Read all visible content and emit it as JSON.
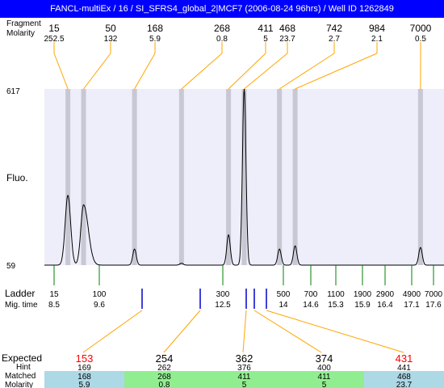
{
  "title": "FANCL-multiEx / 16 / SI_SFRS4_global_2|MCF7 (2006-08-24 96hrs) / Well ID 1262849",
  "header": {
    "fragment_label": "Fragment",
    "molarity_label": "Molarity",
    "fragments": [
      "15",
      "50",
      "168",
      "268",
      "411",
      "468",
      "742",
      "984",
      "7000"
    ],
    "molarities": [
      "252.5",
      "132",
      "5.9",
      "0.8",
      "5",
      "23.7",
      "2.7",
      "2.1",
      "0.5"
    ]
  },
  "axis": {
    "ylabel": "Fluo.",
    "ymax_label": "617",
    "ymin_label": "59"
  },
  "ladder": {
    "label": "Ladder",
    "migtime_label": "Mig. time",
    "sizes": [
      "15",
      "100",
      "300",
      "500",
      "700",
      "1100",
      "1900",
      "2900",
      "4900",
      "7000"
    ],
    "mig_times": [
      "8.5",
      "9.6",
      "12.5",
      "14",
      "14.6",
      "15.3",
      "15.9",
      "16.4",
      "17.1",
      "17.6"
    ]
  },
  "expected": {
    "expected_label": "Expected",
    "hint_label": "Hint",
    "matched_label": "Matched",
    "molarity_label": "Molarity",
    "values": [
      "153",
      "254",
      "362",
      "374",
      "431"
    ],
    "hints": [
      "169",
      "262",
      "376",
      "400",
      "441"
    ],
    "matched": [
      "168",
      "268",
      "411",
      "411",
      "468"
    ],
    "molarities": [
      "5.9",
      "0.8",
      "5",
      "5",
      "23.7"
    ],
    "value_colors": [
      "#ff0000",
      "#000000",
      "#000000",
      "#000000",
      "#ff0000"
    ],
    "cell_colors": [
      "#add8e6",
      "#90ee90",
      "#90ee90",
      "#90ee90",
      "#add8e6"
    ]
  },
  "colors": {
    "title_bg": "#0000ff",
    "plot_bg": "#eeeefa",
    "band": "#c8c8d4",
    "connector": "#ffa500",
    "ladder_tick": "#008000",
    "expected_tick": "#0000cc",
    "trace": "#000000"
  },
  "chart_data": {
    "type": "line",
    "title": "FANCL-multiEx / 16 / SI_SFRS4_global_2|MCF7 (2006-08-24 96hrs) / Well ID 1262849",
    "xlabel": "",
    "ylabel": "Fluo.",
    "ylim": [
      59,
      617
    ],
    "xlim": [
      8.0,
      18.2
    ],
    "grid": false,
    "baseline": 59,
    "peaks": [
      {
        "size": 15,
        "molarity": 252.5,
        "mig_time": 8.6,
        "height": 280
      },
      {
        "size": 50,
        "molarity": 132,
        "mig_time": 9.0,
        "height": 250
      },
      {
        "size": 168,
        "molarity": 5.9,
        "mig_time": 10.3,
        "height": 110
      },
      {
        "size": 268,
        "molarity": 0.8,
        "mig_time": 11.5,
        "height": 65
      },
      {
        "size": 411,
        "molarity": 5,
        "mig_time": 12.7,
        "height": 155
      },
      {
        "size": 468,
        "molarity": 23.7,
        "mig_time": 13.1,
        "height": 617
      },
      {
        "size": 742,
        "molarity": 2.7,
        "mig_time": 14.0,
        "height": 110
      },
      {
        "size": 984,
        "molarity": 2.1,
        "mig_time": 14.4,
        "height": 120
      },
      {
        "size": 7000,
        "molarity": 0.5,
        "mig_time": 17.6,
        "height": 115
      }
    ],
    "ladder": [
      {
        "size": 15,
        "mig_time": 8.5
      },
      {
        "size": 100,
        "mig_time": 9.6
      },
      {
        "size": 300,
        "mig_time": 12.5
      },
      {
        "size": 500,
        "mig_time": 14
      },
      {
        "size": 700,
        "mig_time": 14.6
      },
      {
        "size": 1100,
        "mig_time": 15.3
      },
      {
        "size": 1900,
        "mig_time": 15.9
      },
      {
        "size": 2900,
        "mig_time": 16.4
      },
      {
        "size": 4900,
        "mig_time": 17.1
      },
      {
        "size": 7000,
        "mig_time": 17.6
      }
    ]
  }
}
